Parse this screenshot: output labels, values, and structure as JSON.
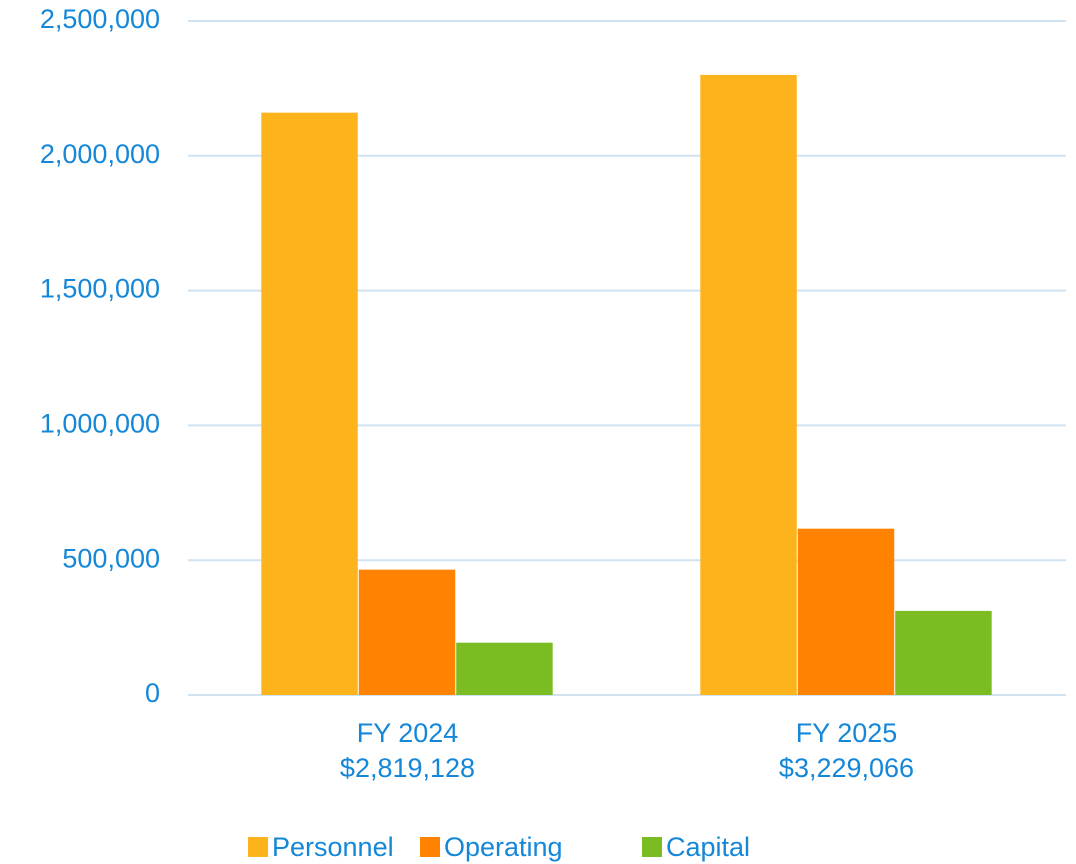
{
  "chart_data": {
    "type": "bar",
    "categories": [
      "FY 2024\n$2,819,128",
      "FY 2025\n$3,229,066"
    ],
    "series": [
      {
        "name": "Personnel",
        "color": "#fdb31c",
        "values": [
          2160000,
          2300000
        ]
      },
      {
        "name": "Operating",
        "color": "#ff8200",
        "values": [
          465000,
          617000
        ]
      },
      {
        "name": "Capital",
        "color": "#7bbc23",
        "values": [
          194000,
          312000
        ]
      }
    ],
    "ylim": [
      0,
      2500000
    ],
    "yticks": [
      0,
      {
        "value": 500000,
        "label": "500,000"
      },
      {
        "value": 1000000,
        "label": "1,000,000"
      },
      {
        "value": 1500000,
        "label": "1,500,000"
      },
      {
        "value": 2000000,
        "label": "2,000,000"
      },
      {
        "value": 2500000,
        "label": "2,500,000"
      }
    ],
    "grid": true,
    "legend": "bottom"
  }
}
